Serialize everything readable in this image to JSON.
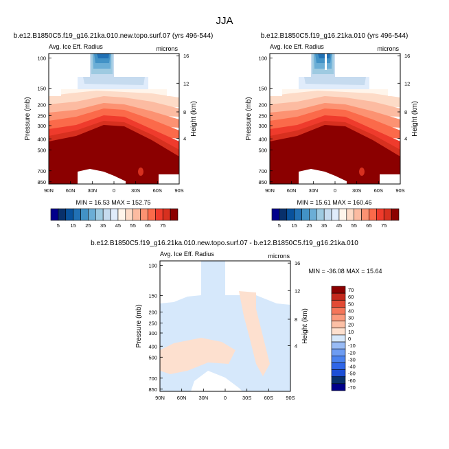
{
  "figure_title": "JJA",
  "colors": {
    "warm": [
      "#fff5eb",
      "#fddbc7",
      "#fcbba1",
      "#fc9272",
      "#fb6a4a",
      "#ef3b2c",
      "#d7301f",
      "#b30000",
      "#8b0000"
    ],
    "cool": [
      "#e0ecfb",
      "#c6dbef",
      "#9ecae1",
      "#6baed6",
      "#4292c6",
      "#2171b5",
      "#08519c",
      "#08306b",
      "#00008b"
    ],
    "diff": [
      "#00008b",
      "#08306b",
      "#1c4fd6",
      "#2f66e8",
      "#4a82ee",
      "#6d9cf2",
      "#98bbf5",
      "#d6e8fb",
      "#fde0cf",
      "#fcc0a6",
      "#fb9a7d",
      "#f57559",
      "#e24a35",
      "#c4281c",
      "#8b0000"
    ]
  },
  "chart_data": [
    {
      "type": "heatmap",
      "title": "b.e12.B1850C5.f19_g16.21ka.010.new.topo.surf.07 (yrs 496-544)",
      "left_label": "Avg. Ice Eff. Radius",
      "right_label": "microns",
      "ylabel": "Pressure (mb)",
      "ylabel_right": "Height (km)",
      "x_ticks": [
        "90N",
        "60N",
        "30N",
        "0",
        "30S",
        "60S",
        "90S"
      ],
      "y_ticks": [
        "100",
        "150",
        "200",
        "250",
        "300",
        "400",
        "500",
        "700",
        "850"
      ],
      "y_ticks_right": [
        "16",
        "12",
        "8",
        "4"
      ],
      "stats": "MIN =  16.53   MAX = 152.75",
      "colorbar_labels": [
        "5",
        "15",
        "25",
        "35",
        "45",
        "55",
        "65",
        "75"
      ],
      "value_range": [
        16.53,
        152.75
      ]
    },
    {
      "type": "heatmap",
      "title": "b.e12.B1850C5.f19_g16.21ka.010 (yrs 496-544)",
      "left_label": "Avg. Ice Eff. Radius",
      "right_label": "microns",
      "ylabel": "Pressure (mb)",
      "ylabel_right": "Height (km)",
      "x_ticks": [
        "90N",
        "60N",
        "30N",
        "0",
        "30S",
        "60S",
        "90S"
      ],
      "y_ticks": [
        "100",
        "150",
        "200",
        "250",
        "300",
        "400",
        "500",
        "700",
        "850"
      ],
      "y_ticks_right": [
        "16",
        "12",
        "8",
        "4"
      ],
      "stats": "MIN =  15.61   MAX = 160.46",
      "colorbar_labels": [
        "5",
        "15",
        "25",
        "35",
        "45",
        "55",
        "65",
        "75"
      ],
      "value_range": [
        15.61,
        160.46
      ]
    },
    {
      "type": "heatmap",
      "title": "b.e12.B1850C5.f19_g16.21ka.010.new.topo.surf.07 - b.e12.B1850C5.f19_g16.21ka.010",
      "left_label": "Avg. Ice Eff. Radius",
      "right_label": "microns",
      "ylabel": "Pressure (mb)",
      "ylabel_right": "Height (km)",
      "x_ticks": [
        "90N",
        "60N",
        "30N",
        "0",
        "30S",
        "60S",
        "90S"
      ],
      "y_ticks": [
        "100",
        "150",
        "200",
        "250",
        "300",
        "400",
        "500",
        "700",
        "850"
      ],
      "y_ticks_right": [
        "16",
        "12",
        "8",
        "4"
      ],
      "stats": "MIN = -36.08   MAX =  15.64",
      "colorbar_labels": [
        "70",
        "60",
        "50",
        "40",
        "30",
        "20",
        "10",
        "0",
        "-10",
        "-20",
        "-30",
        "-40",
        "-50",
        "-60",
        "-70"
      ],
      "value_range": [
        -36.08,
        15.64
      ]
    }
  ]
}
